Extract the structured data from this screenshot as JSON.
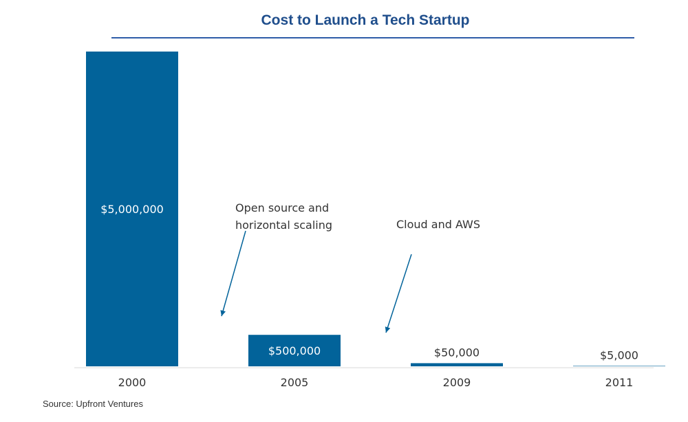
{
  "chart_data": {
    "type": "bar",
    "title": "Cost to Launch a Tech Startup",
    "categories": [
      "2000",
      "2005",
      "2009",
      "2011"
    ],
    "values": [
      5000000,
      500000,
      50000,
      5000
    ],
    "value_labels": [
      "$5,000,000",
      "$500,000",
      "$50,000",
      "$5,000"
    ],
    "xlabel": "",
    "ylabel": "",
    "ylim": [
      0,
      5000000
    ],
    "grid": false,
    "legend": "none",
    "annotations": [
      {
        "lines": [
          "Open source and",
          "horizontal scaling"
        ],
        "between": [
          "2000",
          "2005"
        ]
      },
      {
        "lines": [
          "Cloud and AWS"
        ],
        "between": [
          "2005",
          "2009"
        ]
      }
    ],
    "source": "Source: Upfront Ventures",
    "colors": {
      "bar": "#02639a",
      "title": "#1f4e8c",
      "title_rule": "#2e5ca8"
    }
  }
}
